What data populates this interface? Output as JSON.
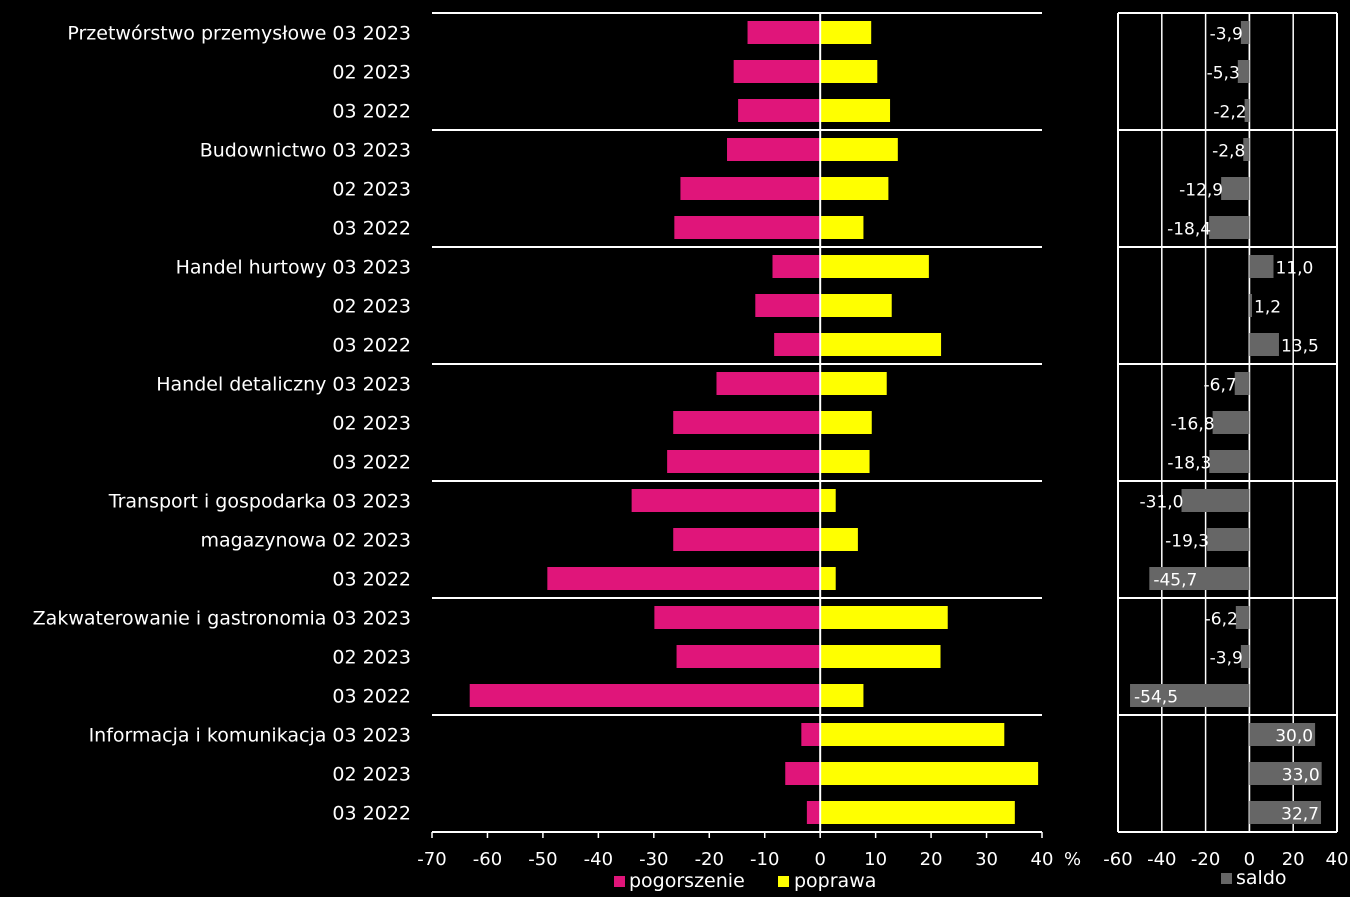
{
  "chart_data": [
    {
      "type": "bar",
      "orientation": "horizontal",
      "groups": [
        {
          "label": "Przetwórstwo przemysłowe",
          "rows": [
            "03 2023",
            "02 2023",
            "03 2022"
          ]
        },
        {
          "label": "Budownictwo",
          "rows": [
            "03 2023",
            "02 2023",
            "03 2022"
          ]
        },
        {
          "label": "Handel hurtowy",
          "rows": [
            "03 2023",
            "02 2023",
            "03 2022"
          ]
        },
        {
          "label": "Handel detaliczny",
          "rows": [
            "03 2023",
            "02 2023",
            "03 2022"
          ]
        },
        {
          "label": "Transport i gospodarka magazynowa",
          "label_lines": [
            "Transport i gospodarka",
            "magazynowa"
          ],
          "rows": [
            "03 2023",
            "02 2023",
            "03 2022"
          ]
        },
        {
          "label": "Zakwaterowanie i gastronomia",
          "rows": [
            "03 2023",
            "02 2023",
            "03 2022"
          ]
        },
        {
          "label": "Informacja i komunikacja",
          "rows": [
            "03 2023",
            "02 2023",
            "03 2022"
          ]
        }
      ],
      "series": [
        {
          "name": "pogorszenie",
          "color": "#e0157a",
          "values": [
            -13.1,
            -15.6,
            -14.8,
            -16.8,
            -25.2,
            -26.3,
            -8.6,
            -11.7,
            -8.3,
            -18.7,
            -26.5,
            -27.6,
            -34.0,
            -26.5,
            -49.2,
            -29.9,
            -25.9,
            -63.2,
            -3.4,
            -6.3,
            -2.4
          ]
        },
        {
          "name": "poprawa",
          "color": "#ffff00",
          "values": [
            9.2,
            10.3,
            12.6,
            14.0,
            12.3,
            7.8,
            19.6,
            12.9,
            21.8,
            12.0,
            9.3,
            8.9,
            2.8,
            6.8,
            2.8,
            23.0,
            21.7,
            7.8,
            33.2,
            39.3,
            35.1
          ]
        }
      ],
      "xlim": [
        -70,
        40
      ],
      "xticks": [
        -70,
        -60,
        -50,
        -40,
        -30,
        -20,
        -10,
        0,
        10,
        20,
        30,
        40
      ],
      "x_unit": "%",
      "legend": "bottom"
    },
    {
      "type": "bar",
      "orientation": "horizontal",
      "series": [
        {
          "name": "saldo",
          "color": "#666666",
          "values": [
            -3.9,
            -5.3,
            -2.2,
            -2.8,
            -12.9,
            -18.4,
            11.0,
            1.2,
            13.5,
            -6.7,
            -16.8,
            -18.3,
            -31.0,
            -19.3,
            -45.7,
            -6.2,
            -3.9,
            -54.5,
            30.0,
            33.0,
            32.7
          ],
          "labels": [
            "-3,9",
            "-5,3",
            "-2,2",
            "-2,8",
            "-12,9",
            "-18,4",
            "11,0",
            "1,2",
            "13,5",
            "-6,7",
            "-16,8",
            "-18,3",
            "-31,0",
            "-19,3",
            "-45,7",
            "-6,2",
            "-3,9",
            "-54,5",
            "30,0",
            "33,0",
            "32,7"
          ]
        }
      ],
      "xlim": [
        -60,
        40
      ],
      "xticks": [
        -60,
        -40,
        -20,
        0,
        20,
        40
      ],
      "grid": true,
      "legend": "bottom"
    }
  ]
}
